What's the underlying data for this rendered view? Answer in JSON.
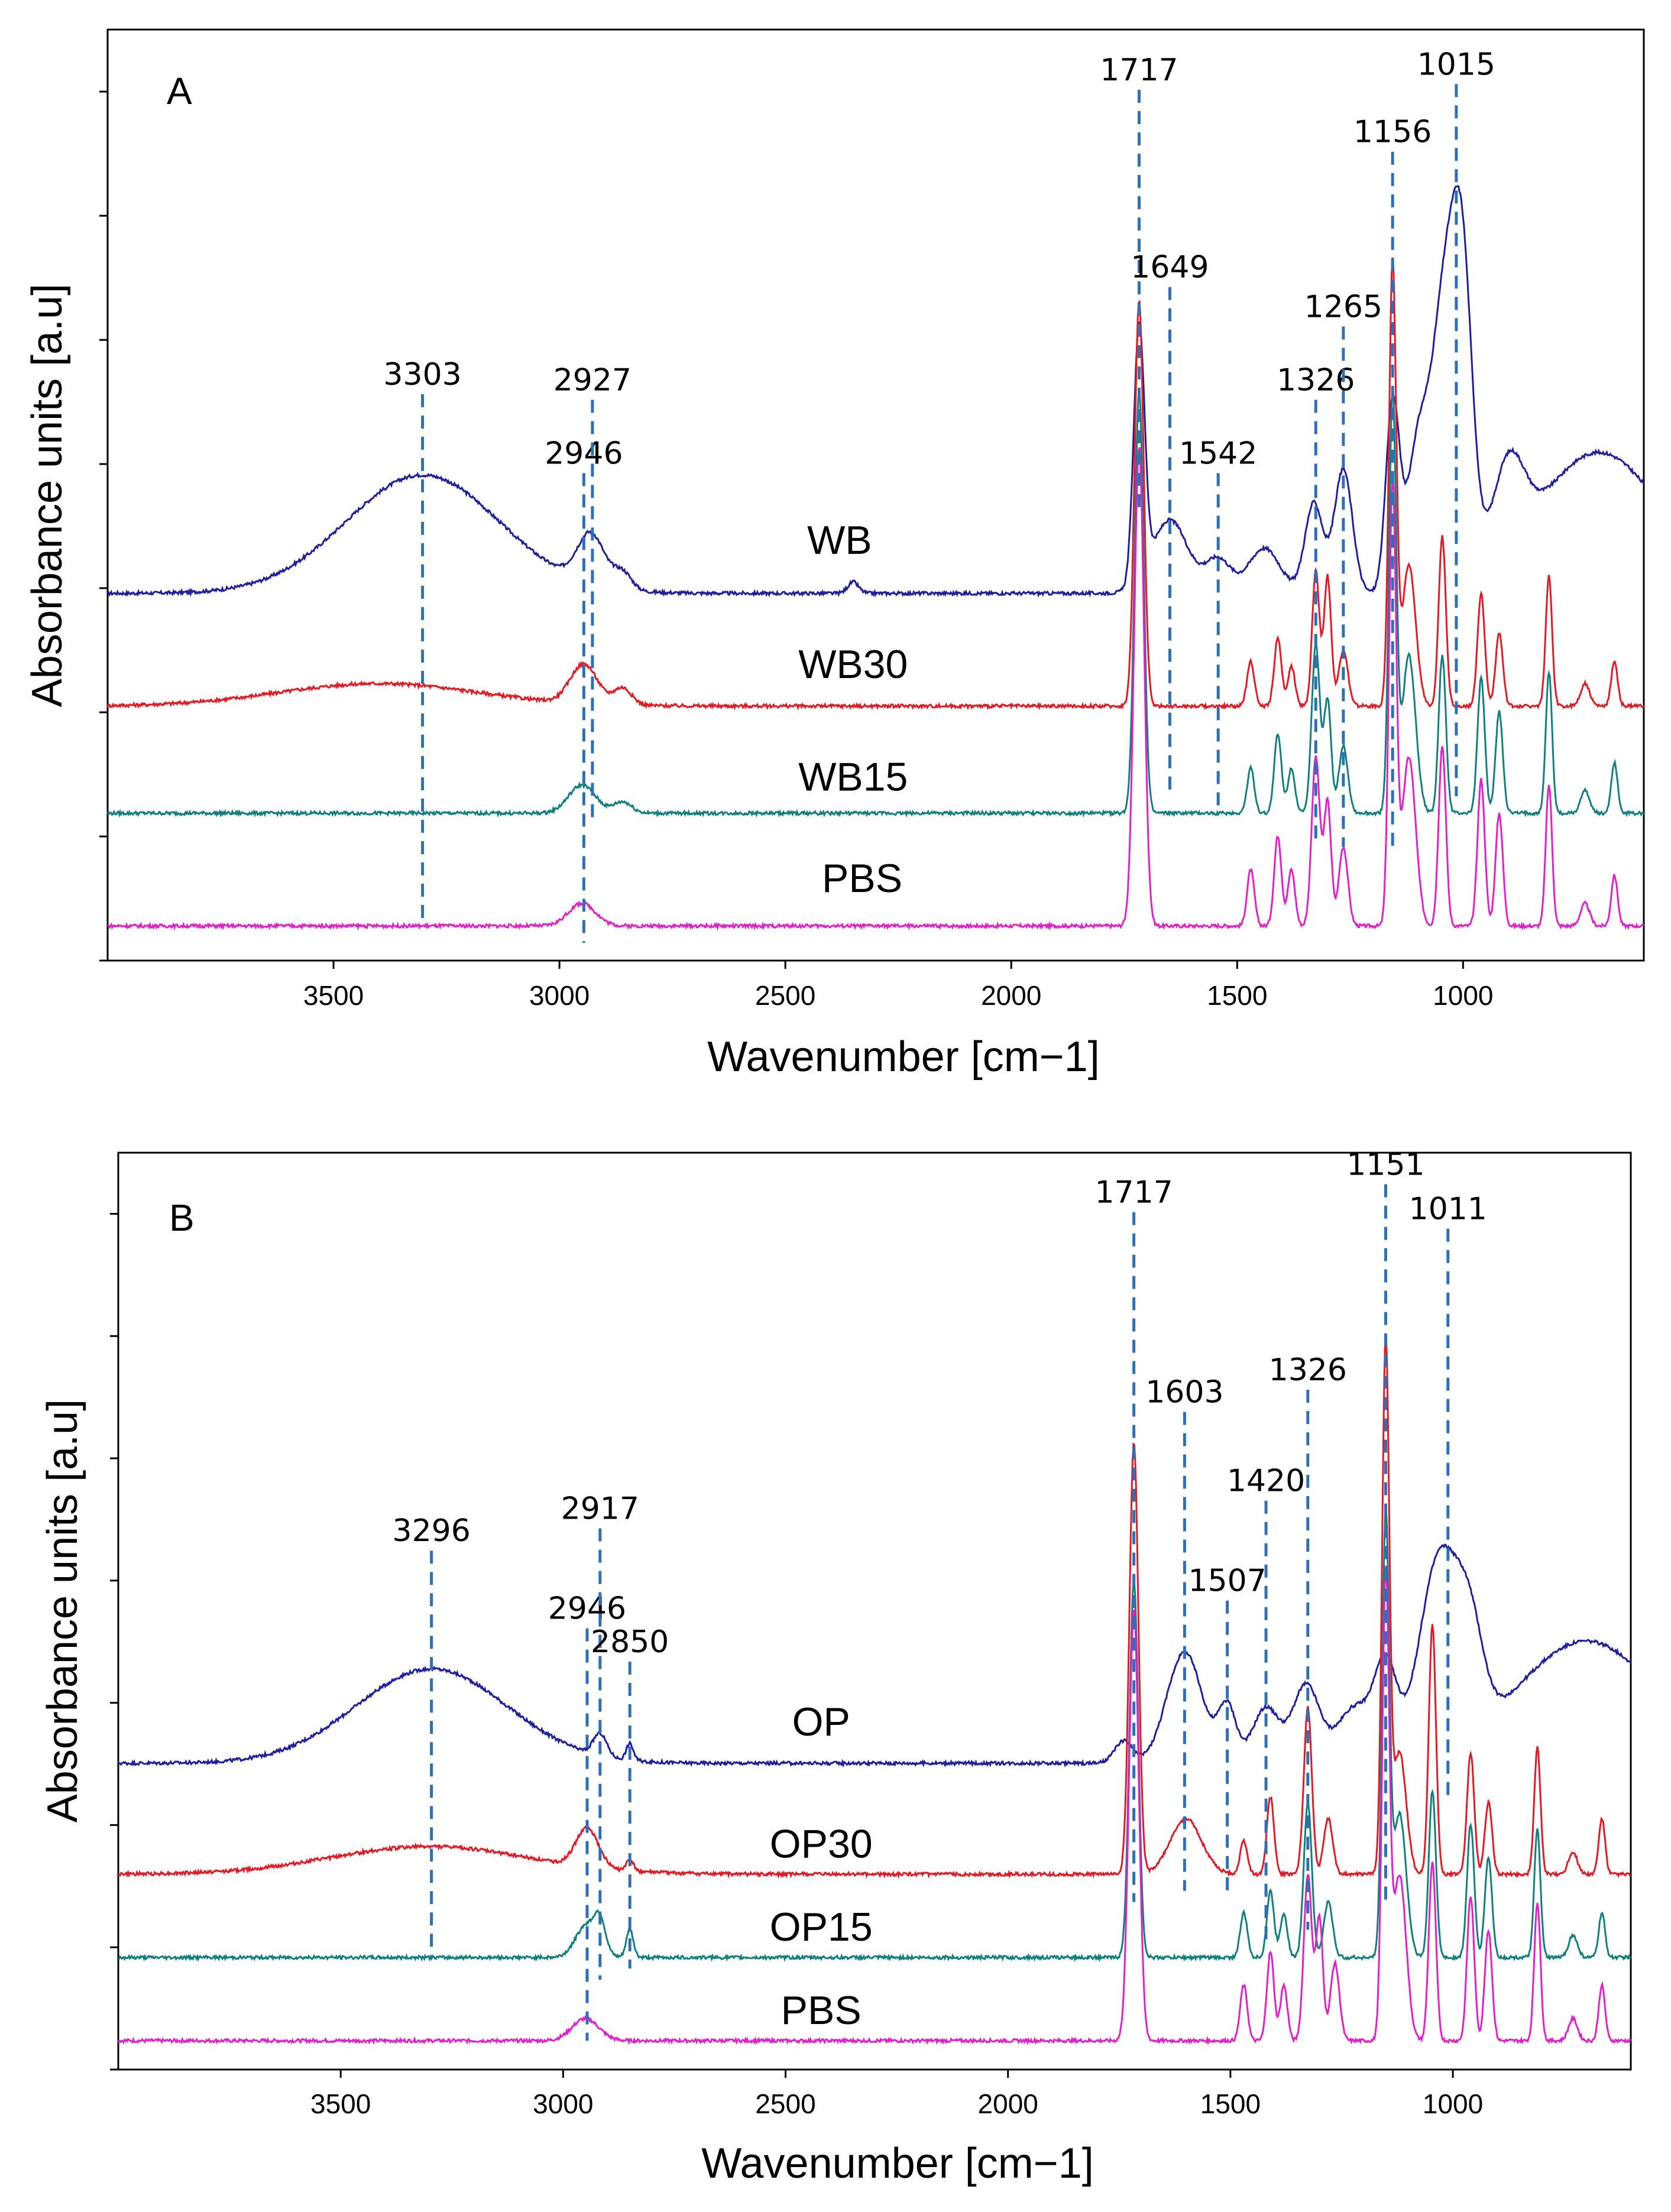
{
  "figure": {
    "colors": {
      "blue": "#1f1f9e",
      "red": "#e01b24",
      "teal": "#127f7f",
      "magenta": "#e020c8",
      "peak_line": "#2e6fb5",
      "frame": "#000000"
    }
  },
  "chart_data": [
    {
      "type": "line",
      "panel": "A",
      "title": "",
      "xlabel": "Wavenumber [cm−1]",
      "ylabel": "Absorbance units [a.u]",
      "xlim": [
        4000,
        600
      ],
      "x_ticks": [
        3500,
        3000,
        2500,
        2000,
        1500,
        1000
      ],
      "x_tick_labels": [
        "3500",
        "3000",
        "2500",
        "2000",
        "1500",
        "1000"
      ],
      "y_tick_count": 8,
      "grid": false,
      "series": [
        {
          "name": "WB",
          "color": "#1f1f9e",
          "baseline": 0.62,
          "features": [
            [
              3303,
              0.21,
              170
            ],
            [
              2930,
              0.09,
              30
            ],
            [
              2860,
              0.03,
              20
            ],
            [
              2350,
              0.02,
              12
            ],
            [
              1717,
              0.45,
              12
            ],
            [
              1649,
              0.13,
              40
            ],
            [
              1542,
              0.06,
              28
            ],
            [
              1440,
              0.08,
              35
            ],
            [
              1330,
              0.16,
              20
            ],
            [
              1265,
              0.22,
              20
            ],
            [
              1156,
              0.33,
              15
            ],
            [
              1100,
              0.25,
              25
            ],
            [
              1040,
              0.5,
              28
            ],
            [
              1000,
              0.46,
              22
            ],
            [
              900,
              0.16,
              35
            ],
            [
              700,
              0.25,
              140
            ]
          ]
        },
        {
          "name": "WB30",
          "color": "#e01b24",
          "baseline": 0.42,
          "features": [
            [
              3400,
              0.04,
              220
            ],
            [
              2946,
              0.07,
              30
            ],
            [
              2860,
              0.03,
              20
            ],
            [
              1717,
              0.72,
              10
            ],
            [
              1470,
              0.08,
              8
            ],
            [
              1410,
              0.12,
              8
            ],
            [
              1380,
              0.07,
              8
            ],
            [
              1326,
              0.24,
              8
            ],
            [
              1300,
              0.23,
              8
            ],
            [
              1265,
              0.1,
              10
            ],
            [
              1156,
              0.78,
              8
            ],
            [
              1120,
              0.25,
              15
            ],
            [
              1046,
              0.3,
              8
            ],
            [
              960,
              0.2,
              8
            ],
            [
              920,
              0.13,
              8
            ],
            [
              810,
              0.23,
              7
            ],
            [
              730,
              0.04,
              10
            ],
            [
              665,
              0.08,
              7
            ]
          ]
        },
        {
          "name": "WB15",
          "color": "#127f7f",
          "baseline": 0.23,
          "features": [
            [
              2950,
              0.05,
              30
            ],
            [
              2860,
              0.02,
              20
            ],
            [
              1717,
              0.75,
              10
            ],
            [
              1470,
              0.08,
              8
            ],
            [
              1410,
              0.14,
              8
            ],
            [
              1380,
              0.08,
              8
            ],
            [
              1326,
              0.3,
              9
            ],
            [
              1300,
              0.2,
              8
            ],
            [
              1265,
              0.12,
              10
            ],
            [
              1156,
              0.74,
              8
            ],
            [
              1120,
              0.28,
              15
            ],
            [
              1046,
              0.28,
              8
            ],
            [
              960,
              0.24,
              8
            ],
            [
              920,
              0.18,
              8
            ],
            [
              810,
              0.25,
              7
            ],
            [
              730,
              0.04,
              10
            ],
            [
              665,
              0.09,
              7
            ]
          ]
        },
        {
          "name": "PBS",
          "color": "#e020c8",
          "baseline": 0.03,
          "features": [
            [
              2950,
              0.04,
              30
            ],
            [
              1717,
              0.85,
              11
            ],
            [
              1470,
              0.1,
              8
            ],
            [
              1410,
              0.16,
              8
            ],
            [
              1380,
              0.1,
              8
            ],
            [
              1326,
              0.3,
              9
            ],
            [
              1300,
              0.22,
              8
            ],
            [
              1265,
              0.14,
              10
            ],
            [
              1156,
              0.78,
              8
            ],
            [
              1120,
              0.3,
              15
            ],
            [
              1046,
              0.32,
              8
            ],
            [
              960,
              0.26,
              8
            ],
            [
              920,
              0.2,
              8
            ],
            [
              810,
              0.25,
              7
            ],
            [
              730,
              0.04,
              10
            ],
            [
              665,
              0.09,
              7
            ]
          ]
        }
      ],
      "series_labels": [
        {
          "text": "WB",
          "x": 2380,
          "y": 0.69
        },
        {
          "text": "WB30",
          "x": 2350,
          "y": 0.47
        },
        {
          "text": "WB15",
          "x": 2350,
          "y": 0.27
        },
        {
          "text": "PBS",
          "x": 2330,
          "y": 0.09
        }
      ],
      "peaks": [
        {
          "x": 3303,
          "label": "3303",
          "y_top": 0.99,
          "y_bottom": 0.03
        },
        {
          "x": 2946,
          "label": "2946",
          "y_top": 0.85,
          "y_bottom": 0.0
        },
        {
          "x": 2927,
          "label": "2927",
          "y_top": 0.98,
          "y_bottom": 0.22
        },
        {
          "x": 1717,
          "label": "1717",
          "y_top": 1.53,
          "y_bottom": 0.76
        },
        {
          "x": 1649,
          "label": "1649",
          "y_top": 1.18,
          "y_bottom": 0.26
        },
        {
          "x": 1542,
          "label": "1542",
          "y_top": 0.85,
          "y_bottom": 0.23
        },
        {
          "x": 1326,
          "label": "1326",
          "y_top": 0.98,
          "y_bottom": 0.18
        },
        {
          "x": 1265,
          "label": "1265",
          "y_top": 1.11,
          "y_bottom": 0.17
        },
        {
          "x": 1156,
          "label": "1156",
          "y_top": 1.42,
          "y_bottom": 0.16
        },
        {
          "x": 1015,
          "label": "1015",
          "y_top": 1.54,
          "y_bottom": 0.26
        }
      ]
    },
    {
      "type": "line",
      "panel": "B",
      "title": "",
      "xlabel": "Wavenumber [cm−1]",
      "ylabel": "Absorbance units [a.u]",
      "xlim": [
        4000,
        600
      ],
      "x_ticks": [
        3500,
        3000,
        2500,
        2000,
        1500,
        1000
      ],
      "x_tick_labels": [
        "3500",
        "3000",
        "2500",
        "2000",
        "1500",
        "1000"
      ],
      "y_tick_count": 8,
      "grid": false,
      "series": [
        {
          "name": "OP",
          "color": "#1f1f9e",
          "baseline": 0.52,
          "features": [
            [
              3296,
              0.17,
              170
            ],
            [
              2917,
              0.04,
              15
            ],
            [
              2850,
              0.03,
              8
            ],
            [
              1740,
              0.04,
              20
            ],
            [
              1603,
              0.2,
              40
            ],
            [
              1507,
              0.1,
              20
            ],
            [
              1420,
              0.1,
              30
            ],
            [
              1330,
              0.14,
              30
            ],
            [
              1220,
              0.1,
              40
            ],
            [
              1151,
              0.16,
              25
            ],
            [
              1030,
              0.35,
              45
            ],
            [
              960,
              0.15,
              30
            ],
            [
              700,
              0.22,
              160
            ]
          ]
        },
        {
          "name": "OP30",
          "color": "#e01b24",
          "baseline": 0.32,
          "features": [
            [
              3300,
              0.05,
              220
            ],
            [
              2946,
              0.07,
              25
            ],
            [
              2850,
              0.02,
              8
            ],
            [
              1717,
              0.78,
              10
            ],
            [
              1600,
              0.1,
              35
            ],
            [
              1470,
              0.06,
              8
            ],
            [
              1410,
              0.14,
              8
            ],
            [
              1326,
              0.3,
              9
            ],
            [
              1280,
              0.1,
              10
            ],
            [
              1151,
              0.95,
              8
            ],
            [
              1120,
              0.22,
              15
            ],
            [
              1046,
              0.45,
              8
            ],
            [
              960,
              0.22,
              8
            ],
            [
              920,
              0.13,
              8
            ],
            [
              810,
              0.23,
              7
            ],
            [
              730,
              0.04,
              10
            ],
            [
              665,
              0.1,
              7
            ]
          ]
        },
        {
          "name": "OP15",
          "color": "#127f7f",
          "baseline": 0.17,
          "features": [
            [
              2946,
              0.06,
              25
            ],
            [
              2917,
              0.05,
              12
            ],
            [
              2850,
              0.05,
              8
            ],
            [
              1717,
              0.68,
              10
            ],
            [
              1470,
              0.08,
              8
            ],
            [
              1410,
              0.12,
              8
            ],
            [
              1380,
              0.08,
              8
            ],
            [
              1326,
              0.28,
              9
            ],
            [
              1280,
              0.1,
              10
            ],
            [
              1151,
              0.78,
              8
            ],
            [
              1120,
              0.26,
              15
            ],
            [
              1046,
              0.3,
              8
            ],
            [
              960,
              0.24,
              8
            ],
            [
              920,
              0.18,
              8
            ],
            [
              810,
              0.23,
              7
            ],
            [
              730,
              0.04,
              10
            ],
            [
              665,
              0.08,
              7
            ]
          ]
        },
        {
          "name": "PBS",
          "color": "#e020c8",
          "baseline": 0.02,
          "features": [
            [
              2950,
              0.04,
              30
            ],
            [
              1717,
              0.78,
              11
            ],
            [
              1470,
              0.1,
              8
            ],
            [
              1410,
              0.16,
              8
            ],
            [
              1380,
              0.1,
              8
            ],
            [
              1326,
              0.3,
              9
            ],
            [
              1300,
              0.22,
              8
            ],
            [
              1265,
              0.14,
              10
            ],
            [
              1151,
              0.82,
              8
            ],
            [
              1120,
              0.3,
              15
            ],
            [
              1046,
              0.32,
              8
            ],
            [
              960,
              0.26,
              8
            ],
            [
              920,
              0.2,
              8
            ],
            [
              810,
              0.25,
              7
            ],
            [
              730,
              0.04,
              10
            ],
            [
              665,
              0.1,
              7
            ]
          ]
        }
      ],
      "series_labels": [
        {
          "text": "OP",
          "x": 2420,
          "y": 0.57
        },
        {
          "text": "OP30",
          "x": 2420,
          "y": 0.35
        },
        {
          "text": "OP15",
          "x": 2420,
          "y": 0.2
        },
        {
          "text": "PBS",
          "x": 2420,
          "y": 0.05
        }
      ],
      "peaks": [
        {
          "x": 3296,
          "label": "3296",
          "y_top": 0.92,
          "y_bottom": 0.17
        },
        {
          "x": 2946,
          "label": "2946",
          "y_top": 0.78,
          "y_bottom": 0.02
        },
        {
          "x": 2917,
          "label": "2917",
          "y_top": 0.96,
          "y_bottom": 0.13
        },
        {
          "x": 2850,
          "label": "2850",
          "y_top": 0.72,
          "y_bottom": 0.15
        },
        {
          "x": 1717,
          "label": "1717",
          "y_top": 1.53,
          "y_bottom": 0.27
        },
        {
          "x": 1603,
          "label": "1603",
          "y_top": 1.17,
          "y_bottom": 0.29
        },
        {
          "x": 1507,
          "label": "1507",
          "y_top": 0.83,
          "y_bottom": 0.28
        },
        {
          "x": 1420,
          "label": "1420",
          "y_top": 1.01,
          "y_bottom": 0.19
        },
        {
          "x": 1326,
          "label": "1326",
          "y_top": 1.21,
          "y_bottom": 0.22
        },
        {
          "x": 1151,
          "label": "1151",
          "y_top": 1.58,
          "y_bottom": 0.26
        },
        {
          "x": 1011,
          "label": "1011",
          "y_top": 1.5,
          "y_bottom": 0.45
        }
      ]
    }
  ],
  "panels": [
    {
      "letter": "A"
    },
    {
      "letter": "B"
    }
  ]
}
